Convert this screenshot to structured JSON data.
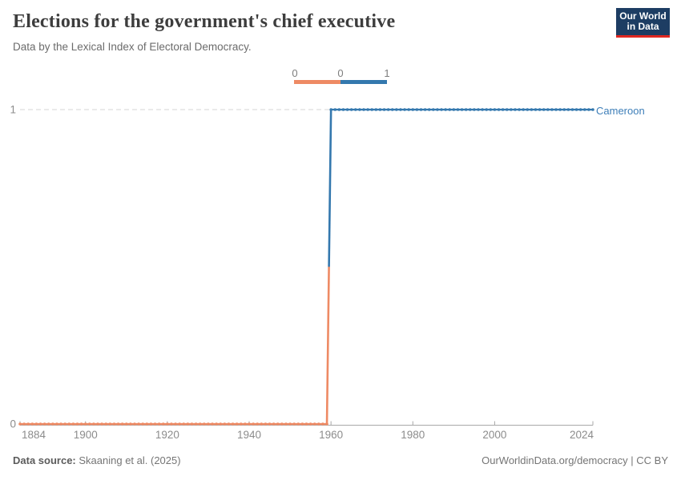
{
  "header": {
    "title": "Elections for the government's chief executive",
    "subtitle": "Data by the Lexical Index of Electoral Democracy.",
    "logo": {
      "line1": "Our World",
      "line2": "in Data"
    }
  },
  "colors": {
    "zero_orange": "#ee8a64",
    "one_blue": "#3478ae",
    "entity_label_blue": "#3d7eb8",
    "logo_navy": "#1d3d63",
    "logo_red": "#e02721",
    "axis_gray": "#a8a8a8",
    "gridline_gray": "#d4d4d4",
    "tick_text_gray": "#8c8c8c"
  },
  "legend": {
    "labels": [
      "0",
      "0",
      "1"
    ]
  },
  "chart_data": {
    "type": "line",
    "title": "Elections for the government's chief executive",
    "subtitle": "Data by the Lexical Index of Electoral Democracy.",
    "entity_label": "Cameroon",
    "xlim": [
      1884,
      2024
    ],
    "ylim": [
      0,
      1
    ],
    "x_ticks": [
      1884,
      1900,
      1920,
      1940,
      1960,
      1980,
      2000,
      2024
    ],
    "y_ticks": [
      0,
      1
    ],
    "grid": "dashed-at-1",
    "legend_position": "top-center",
    "series": [
      {
        "name": "Cameroon",
        "style": "step-line-with-yearly-dots",
        "segments": [
          {
            "start_year": 1884,
            "end_year": 1959,
            "value": 0,
            "color": "#ee8a64"
          },
          {
            "start_year": 1960,
            "end_year": 2024,
            "value": 1,
            "color": "#3478ae"
          }
        ]
      }
    ]
  },
  "footer": {
    "source_label": "Data source:",
    "source_value": "Skaaning et al. (2025)",
    "right_text": "OurWorldinData.org/democracy | CC BY"
  }
}
